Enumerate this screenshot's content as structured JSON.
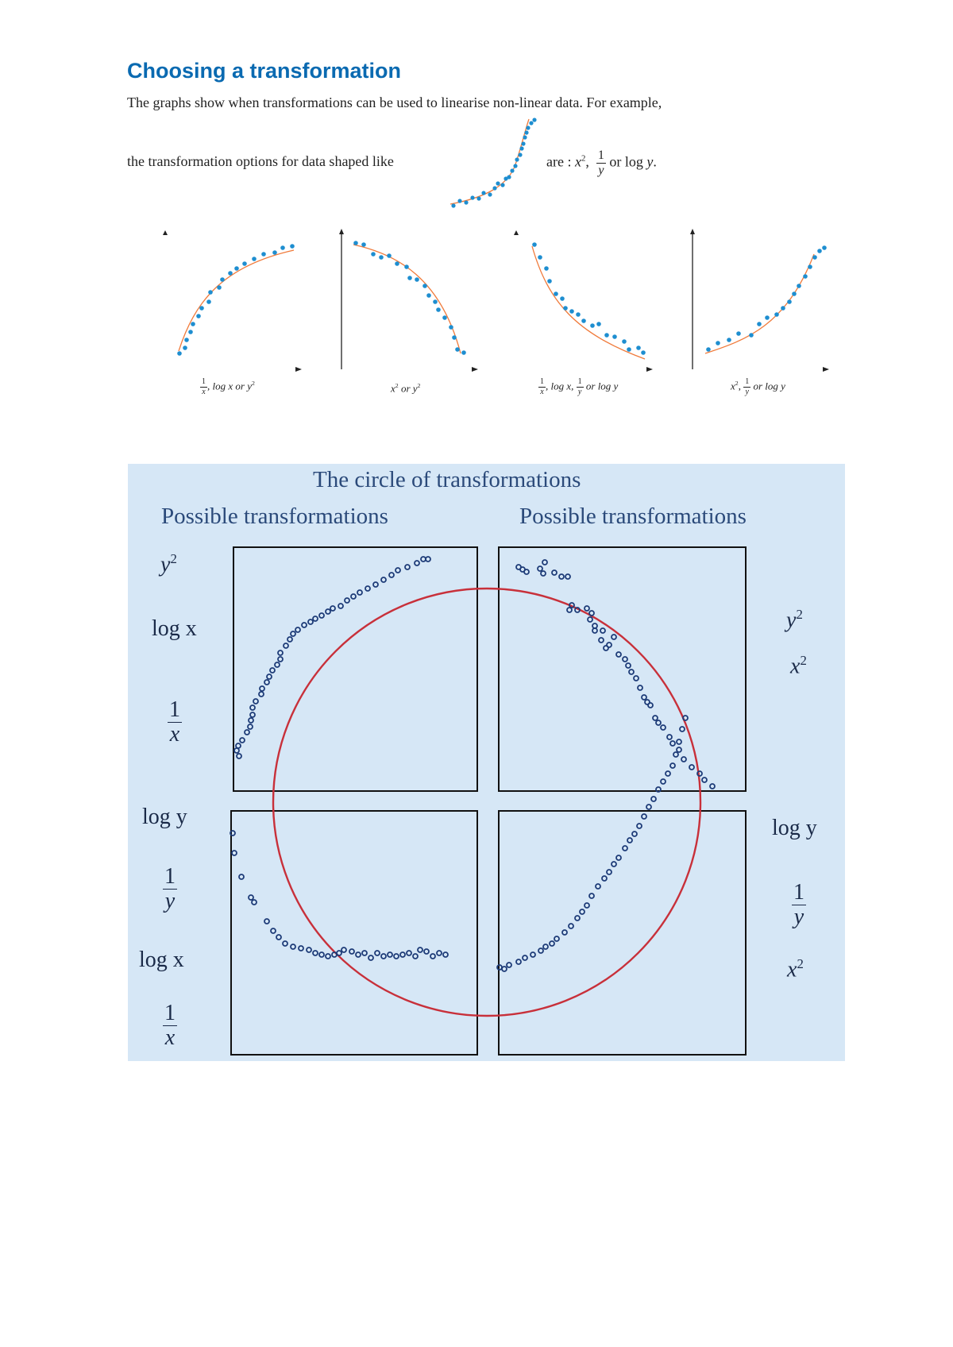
{
  "heading": "Choosing a transformation",
  "intro": {
    "line1": "The graphs show when transformations can be used to linearise non-linear data. For example,",
    "line2": "the transformation options for data shaped like",
    "are": "are : ",
    "x2": "x",
    "sq": "2",
    "comma": ",",
    "frac_num": "1",
    "frac_den": "y",
    "or_log": " or log ",
    "y": "y",
    "period": "."
  },
  "small_graphs": [
    {
      "caption_pre": "",
      "caption_post": ", log x or y",
      "caption_sup": "2",
      "has_frac": true,
      "frac_num": "1",
      "frac_den": "x"
    },
    {
      "caption_pre": "x",
      "caption_post": " or y",
      "caption_sup1": "2",
      "caption_sup2": "2"
    },
    {
      "caption_post": ", log x, ",
      "frac1_num": "1",
      "frac1_den": "x",
      "frac2_num": "1",
      "frac2_den": "y",
      "caption_tail": " or log y"
    },
    {
      "caption_pre": "x",
      "caption_sup": "2",
      "caption_mid": ", ",
      "frac_num": "1",
      "frac_den": "y",
      "caption_tail": " or log y"
    }
  ],
  "circle": {
    "title": "The circle of transformations",
    "left_header": "Possible transformations",
    "right_header": "Possible transformations",
    "top_left": {
      "y2": "y",
      "y2_sup": "2",
      "logx": "log x",
      "frac_num": "1",
      "frac_den": "x"
    },
    "top_right": {
      "y2": "y",
      "y2_sup": "2",
      "x2": "x",
      "x2_sup": "2"
    },
    "bottom_left": {
      "logy": "log y",
      "frac1_num": "1",
      "frac1_den": "y",
      "logx": "log x",
      "frac2_num": "1",
      "frac2_den": "x"
    },
    "bottom_right": {
      "logy": "log y",
      "frac_num": "1",
      "frac_den": "y",
      "x2": "x",
      "x2_sup": "2"
    }
  },
  "colors": {
    "heading": "#0a6ab1",
    "dots": "#1e8ed0",
    "curve": "#f07a3a",
    "panel_bg": "#d6e7f6",
    "circle": "#c8303a",
    "markers": "#1e3c78"
  }
}
